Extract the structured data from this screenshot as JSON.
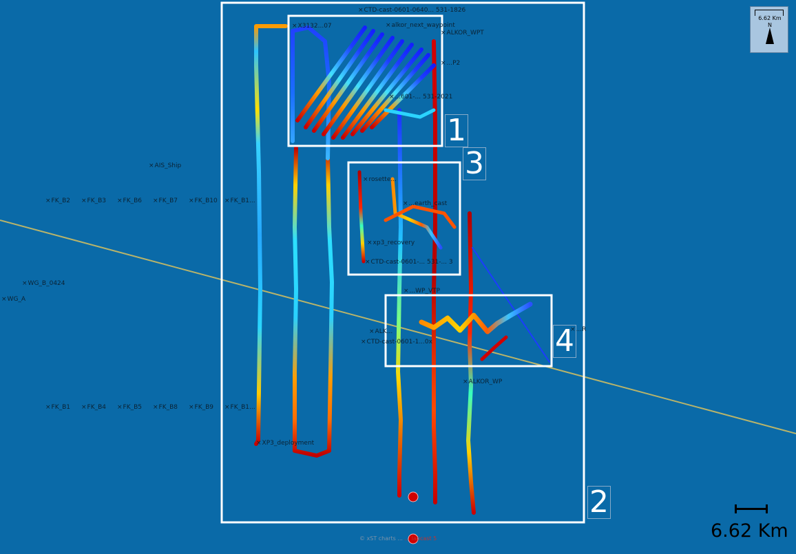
{
  "map": {
    "background_color": "#0a6aa8",
    "tracks_colormap": "jet",
    "transect_line_color": "#b9b46a"
  },
  "compass": {
    "scale_text": "6.62 Km",
    "north_label": "N",
    "icon": "north-arrow-icon"
  },
  "scale_bar": {
    "label": "6.62 Km",
    "icon": "scale-bar-icon"
  },
  "callouts": [
    {
      "number": "1"
    },
    {
      "number": "2"
    },
    {
      "number": "3"
    },
    {
      "number": "4"
    }
  ],
  "waypoints": [
    {
      "label": "CTD-cast-0601-0640... 531-1826"
    },
    {
      "label": "alkor_next_waypoint"
    },
    {
      "label": "X3132...07"
    },
    {
      "label": "ALKOR_WPT"
    },
    {
      "label": "...P2"
    },
    {
      "label": "...601-... 531-2021"
    },
    {
      "label": "AIS_Ship"
    },
    {
      "label": "FK_B2"
    },
    {
      "label": "FK_B3"
    },
    {
      "label": "FK_B6"
    },
    {
      "label": "FK_B7"
    },
    {
      "label": "FK_B10"
    },
    {
      "label": "FK_B1..."
    },
    {
      "label": "rosette..."
    },
    {
      "label": "...earth_cast"
    },
    {
      "label": "xp3_recovery"
    },
    {
      "label": "CTD-cast-0601-... 531-... 3"
    },
    {
      "label": "WG_B_0424"
    },
    {
      "label": "WG_A"
    },
    {
      "label": "...WP_VTP"
    },
    {
      "label": "ALK..."
    },
    {
      "label": "CTD-cast-0601-1...0x"
    },
    {
      "label": "...R"
    },
    {
      "label": "ALKOR_WP"
    },
    {
      "label": "FK_B1"
    },
    {
      "label": "FK_B4"
    },
    {
      "label": "FK_B5"
    },
    {
      "label": "FK_B8"
    },
    {
      "label": "FK_B9"
    },
    {
      "label": "FK_B1..."
    },
    {
      "label": "XP3_deployment"
    }
  ],
  "credit": {
    "text": "© xST charts ... ",
    "highlight": "... Iapcast 5"
  }
}
